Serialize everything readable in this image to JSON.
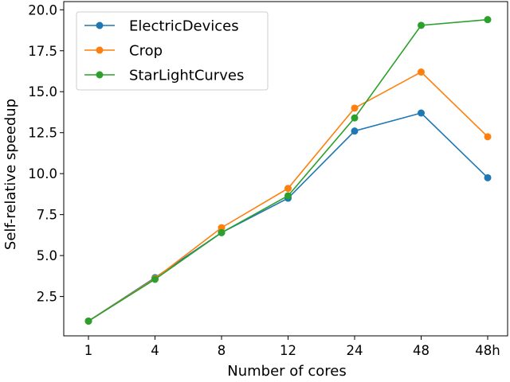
{
  "chart_data": {
    "type": "line",
    "title": "",
    "xlabel": "Number of cores",
    "ylabel": "Self-relative speedup",
    "categories": [
      "1",
      "4",
      "8",
      "12",
      "24",
      "48",
      "48h"
    ],
    "ylim": [
      0.1,
      20.5
    ],
    "yticks": [
      2.5,
      5.0,
      7.5,
      10.0,
      12.5,
      15.0,
      17.5,
      20.0
    ],
    "ytick_labels": [
      "2.5",
      "5.0",
      "7.5",
      "10.0",
      "12.5",
      "15.0",
      "17.5",
      "20.0"
    ],
    "grid": false,
    "legend": "top-left",
    "series": [
      {
        "name": "ElectricDevices",
        "color": "#1f77b4",
        "values": [
          1.0,
          3.65,
          6.4,
          8.5,
          12.6,
          13.7,
          9.75
        ]
      },
      {
        "name": "Crop",
        "color": "#ff7f0e",
        "values": [
          1.0,
          3.6,
          6.7,
          9.1,
          14.0,
          16.2,
          12.25
        ]
      },
      {
        "name": "StarLightCurves",
        "color": "#2ca02c",
        "values": [
          1.0,
          3.55,
          6.4,
          8.65,
          13.4,
          19.05,
          19.4
        ]
      }
    ]
  }
}
